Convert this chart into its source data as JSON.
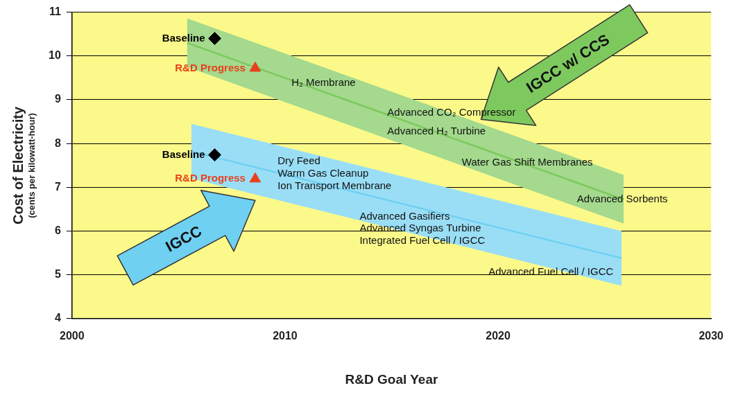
{
  "chart_data": {
    "type": "scatter",
    "xlabel": "R&D Goal Year",
    "ylabel": "Cost of Electricity (cents per kilowatt-hour)",
    "xlim": [
      2000,
      2030
    ],
    "xticks": [
      2000,
      2010,
      2020,
      2030
    ],
    "ylim": [
      4,
      11
    ],
    "yticks": [
      4,
      5,
      6,
      7,
      8,
      9,
      10,
      11
    ],
    "grid": "y",
    "legend": false,
    "series": [
      {
        "type": "line",
        "color": "#7dc95e",
        "x": [
          2005.4,
          2025.9
        ],
        "values": [
          10.3,
          6.72
        ],
        "lower": [
          9.75,
          6.17
        ],
        "upper": [
          10.86,
          7.28
        ]
      },
      {
        "type": "line",
        "color": "#6fd0f2",
        "x": [
          2005.6,
          2025.8
        ],
        "values": [
          7.82,
          5.38
        ],
        "lower": [
          7.2,
          4.75
        ],
        "upper": [
          8.45,
          6.0
        ]
      },
      {
        "type": "scatter",
        "name": "Baseline",
        "color": "#000000",
        "marker": "diamond",
        "x": [
          2006.7,
          2006.7
        ],
        "values": [
          10.4,
          7.74
        ]
      },
      {
        "type": "scatter",
        "name": "R&D Progress",
        "color": "#e8401c",
        "marker": "triangle",
        "x": [
          2008.6,
          2008.6
        ],
        "values": [
          9.72,
          7.19
        ]
      }
    ],
    "annotations": [
      "IGCC w/ CCS",
      "IGCC",
      "H₂ Membrane",
      "Advanced CO₂ Compressor",
      "Advanced H₂ Turbine",
      "Water Gas Shift Membranes",
      "Advanced Sorbents",
      "Dry Feed",
      "Warm Gas Cleanup",
      "Ion Transport Membrane",
      "Advanced Gasifiers",
      "Advanced Syngas Turbine",
      "Integrated Fuel Cell / IGCC",
      "Advanced Fuel Cell / IGCC"
    ]
  }
}
